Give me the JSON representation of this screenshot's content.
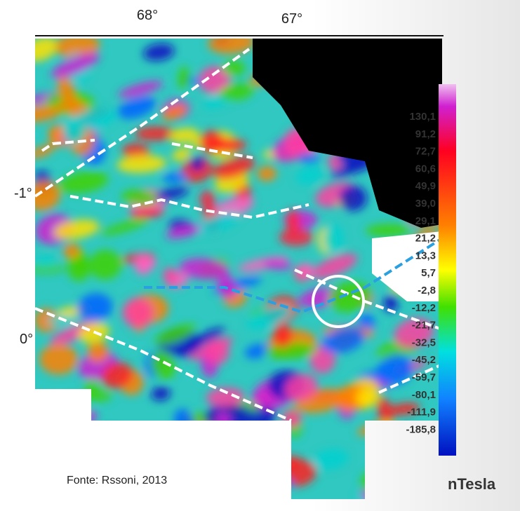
{
  "map": {
    "lon_labels": [
      "68°",
      "67°"
    ],
    "lat_labels": [
      "-1°",
      "0°"
    ],
    "legend": {
      "labels": [
        "130,1",
        "91,2",
        "72,7",
        "60,6",
        "49,9",
        "39,0",
        "29,1",
        "21,2",
        "13,3",
        "5,7",
        "-2,8",
        "-12,2",
        "-21,7",
        "-32,5",
        "-45,2",
        "-59,7",
        "-80,1",
        "-111,9",
        "-185,8"
      ],
      "unit": "nTesla"
    },
    "source": "Fonte: Rssoni, 2013"
  }
}
